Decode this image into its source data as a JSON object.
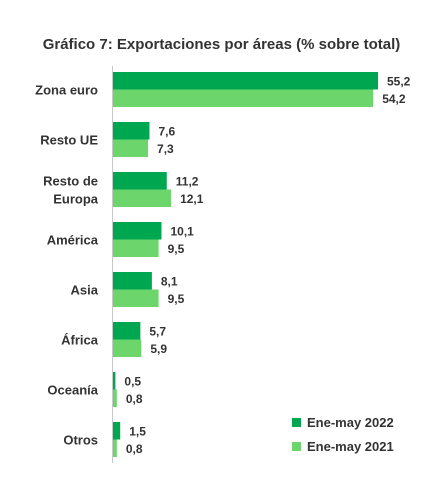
{
  "chart_data": {
    "type": "bar",
    "orientation": "horizontal",
    "title": "Gráfico 7: Exportaciones por áreas (% sobre total)",
    "categories": [
      "Zona euro",
      "Resto UE",
      "Resto de Europa",
      "América",
      "Asia",
      "África",
      "Oceanía",
      "Otros"
    ],
    "category_lines": [
      [
        "Zona euro"
      ],
      [
        "Resto UE"
      ],
      [
        "Resto de",
        "Europa"
      ],
      [
        "América"
      ],
      [
        "Asia"
      ],
      [
        "África"
      ],
      [
        "Oceanía"
      ],
      [
        "Otros"
      ]
    ],
    "series": [
      {
        "name": "Ene-may 2022",
        "color": "#00a650",
        "values": [
          55.2,
          7.6,
          11.2,
          10.1,
          8.1,
          5.7,
          0.5,
          1.5
        ],
        "labels": [
          "55,2",
          "7,6",
          "11,2",
          "10,1",
          "8,1",
          "5,7",
          "0,5",
          "1,5"
        ]
      },
      {
        "name": "Ene-may 2021",
        "color": "#6cd66c",
        "values": [
          54.2,
          7.3,
          12.1,
          9.5,
          9.5,
          5.9,
          0.8,
          0.8
        ],
        "labels": [
          "54,2",
          "7,3",
          "12,1",
          "9,5",
          "9,5",
          "5,9",
          "0,8",
          "0,8"
        ]
      }
    ],
    "xlabel": "",
    "ylabel": "",
    "xlim": [
      0,
      55.2
    ],
    "grid": false,
    "legend_position": "bottom-right",
    "axis_color": "#c8c8c8"
  }
}
